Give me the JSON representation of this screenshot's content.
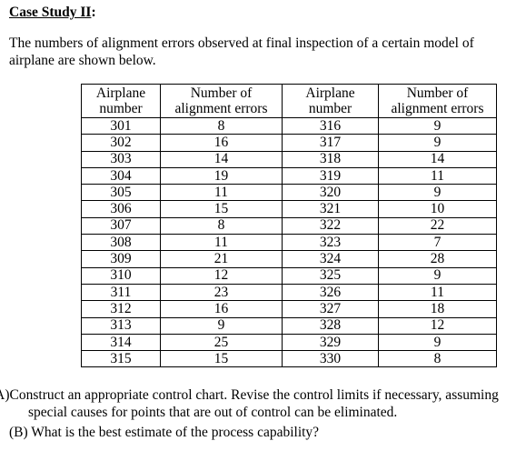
{
  "heading": {
    "label": "Case Study II",
    "suffix": ":"
  },
  "intro": "The numbers of alignment errors observed at final inspection of a certain model of airplane are shown below.",
  "table": {
    "headers": [
      [
        "Airplane",
        "number"
      ],
      [
        "Number of",
        "alignment errors"
      ],
      [
        "Airplane",
        "number"
      ],
      [
        "Number of",
        "alignment errors"
      ]
    ],
    "rows": [
      [
        "301",
        "8",
        "316",
        "9"
      ],
      [
        "302",
        "16",
        "317",
        "9"
      ],
      [
        "303",
        "14",
        "318",
        "14"
      ],
      [
        "304",
        "19",
        "319",
        "11"
      ],
      [
        "305",
        "11",
        "320",
        "9"
      ],
      [
        "306",
        "15",
        "321",
        "10"
      ],
      [
        "307",
        "8",
        "322",
        "22"
      ],
      [
        "308",
        "11",
        "323",
        "7"
      ],
      [
        "309",
        "21",
        "324",
        "28"
      ],
      [
        "310",
        "12",
        "325",
        "9"
      ],
      [
        "311",
        "23",
        "326",
        "11"
      ],
      [
        "312",
        "16",
        "327",
        "18"
      ],
      [
        "313",
        "9",
        "328",
        "12"
      ],
      [
        "314",
        "25",
        "329",
        "9"
      ],
      [
        "315",
        "15",
        "330",
        "8"
      ]
    ]
  },
  "questions": [
    {
      "label": "(A)",
      "text": "Construct an appropriate control chart. Revise the  control limits if necessary, assuming special causes for points that are out of control can be eliminated."
    },
    {
      "label": "(B)",
      "text": "What is the best estimate of the process capability?"
    }
  ]
}
